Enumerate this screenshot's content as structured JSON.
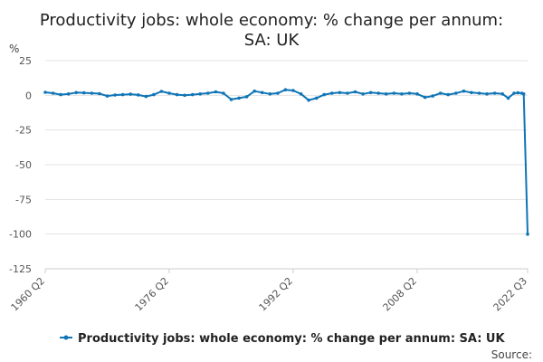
{
  "chart_data": {
    "type": "line",
    "title": "Productivity jobs: whole economy: % change per annum: SA: UK",
    "ylabel": "%",
    "xlabel": "",
    "source_label": "Source:",
    "ylim": [
      -125,
      25
    ],
    "y_ticks": [
      25,
      0,
      -25,
      -50,
      -75,
      -100,
      -125
    ],
    "x_tick_labels": [
      "1960 Q2",
      "1976 Q2",
      "1992 Q2",
      "2008 Q2",
      "2022 Q3"
    ],
    "grid": true,
    "legend_position": "bottom",
    "series": [
      {
        "name": "Productivity jobs: whole economy: % change per annum: SA: UK",
        "color": "#0f75b6",
        "points": [
          [
            "1960 Q2",
            2.2
          ],
          [
            "1961 Q2",
            1.5
          ],
          [
            "1962 Q2",
            0.5
          ],
          [
            "1963 Q2",
            1.0
          ],
          [
            "1964 Q2",
            2.0
          ],
          [
            "1965 Q2",
            1.8
          ],
          [
            "1966 Q2",
            1.5
          ],
          [
            "1967 Q2",
            1.2
          ],
          [
            "1968 Q2",
            -0.5
          ],
          [
            "1969 Q2",
            0.2
          ],
          [
            "1970 Q2",
            0.5
          ],
          [
            "1971 Q2",
            0.8
          ],
          [
            "1972 Q2",
            0.3
          ],
          [
            "1973 Q2",
            -0.8
          ],
          [
            "1974 Q2",
            0.5
          ],
          [
            "1975 Q2",
            2.8
          ],
          [
            "1976 Q2",
            1.5
          ],
          [
            "1977 Q2",
            0.5
          ],
          [
            "1978 Q2",
            0.0
          ],
          [
            "1979 Q2",
            0.5
          ],
          [
            "1980 Q2",
            1.0
          ],
          [
            "1981 Q2",
            1.5
          ],
          [
            "1982 Q2",
            2.5
          ],
          [
            "1983 Q2",
            1.5
          ],
          [
            "1984 Q2",
            -3.0
          ],
          [
            "1985 Q2",
            -2.0
          ],
          [
            "1986 Q2",
            -1.0
          ],
          [
            "1987 Q2",
            3.0
          ],
          [
            "1988 Q2",
            2.0
          ],
          [
            "1989 Q2",
            1.0
          ],
          [
            "1990 Q2",
            1.5
          ],
          [
            "1991 Q2",
            4.0
          ],
          [
            "1992 Q2",
            3.5
          ],
          [
            "1993 Q2",
            1.0
          ],
          [
            "1994 Q2",
            -3.5
          ],
          [
            "1995 Q2",
            -2.0
          ],
          [
            "1996 Q2",
            0.5
          ],
          [
            "1997 Q2",
            1.5
          ],
          [
            "1998 Q2",
            2.0
          ],
          [
            "1999 Q2",
            1.5
          ],
          [
            "2000 Q2",
            2.5
          ],
          [
            "2001 Q2",
            1.0
          ],
          [
            "2002 Q2",
            2.0
          ],
          [
            "2003 Q2",
            1.5
          ],
          [
            "2004 Q2",
            1.0
          ],
          [
            "2005 Q2",
            1.5
          ],
          [
            "2006 Q2",
            1.0
          ],
          [
            "2007 Q2",
            1.5
          ],
          [
            "2008 Q2",
            1.0
          ],
          [
            "2009 Q2",
            -1.5
          ],
          [
            "2010 Q2",
            -0.5
          ],
          [
            "2011 Q2",
            1.5
          ],
          [
            "2012 Q2",
            0.5
          ],
          [
            "2013 Q2",
            1.5
          ],
          [
            "2014 Q2",
            3.0
          ],
          [
            "2015 Q2",
            2.0
          ],
          [
            "2016 Q2",
            1.5
          ],
          [
            "2017 Q2",
            1.0
          ],
          [
            "2018 Q2",
            1.5
          ],
          [
            "2019 Q2",
            1.0
          ],
          [
            "2020 Q1",
            -2.0
          ],
          [
            "2020 Q4",
            1.5
          ],
          [
            "2021 Q2",
            1.8
          ],
          [
            "2021 Q4",
            1.5
          ],
          [
            "2022 Q1",
            1.0
          ],
          [
            "2022 Q3",
            -100.0
          ]
        ]
      }
    ]
  }
}
